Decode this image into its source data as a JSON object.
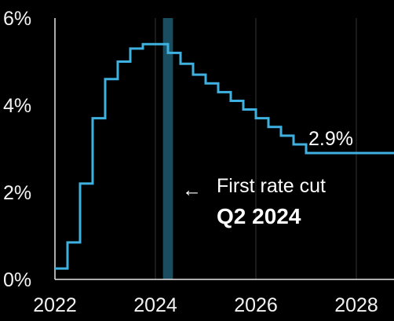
{
  "colors": {
    "background": "#000000",
    "line": "#3fb1e0",
    "highlight_band": "#1d5b70",
    "axis": "#e6e6e6",
    "gridline": "#333333",
    "text": "#f2f2f2"
  },
  "chart_data": {
    "type": "line",
    "step": true,
    "title": "",
    "xlabel": "",
    "ylabel": "",
    "xlim": [
      2022,
      2028.75
    ],
    "ylim": [
      0,
      6
    ],
    "x_ticks": [
      2022,
      2024,
      2026,
      2028
    ],
    "x_tick_labels": [
      "2022",
      "2024",
      "2026",
      "2028"
    ],
    "y_ticks": [
      0,
      2,
      4,
      6
    ],
    "y_tick_labels": [
      "0%",
      "2%",
      "4%",
      "6%"
    ],
    "grid": "vertical at year ticks",
    "legend": "none",
    "highlight_band": {
      "x_start": 2024.15,
      "x_end": 2024.35
    },
    "series": [
      {
        "x": [
          2022.0,
          2022.25,
          2022.5,
          2022.75,
          2023.0,
          2023.25,
          2023.5,
          2023.75,
          2024.0,
          2024.25,
          2024.5,
          2024.75,
          2025.0,
          2025.25,
          2025.5,
          2025.75,
          2026.0,
          2026.25,
          2026.5,
          2026.75,
          2027.0,
          2028.75
        ],
        "y": [
          0.25,
          0.85,
          2.2,
          3.7,
          4.6,
          5.0,
          5.3,
          5.4,
          5.4,
          5.2,
          4.95,
          4.7,
          4.5,
          4.3,
          4.1,
          3.9,
          3.7,
          3.5,
          3.3,
          3.1,
          2.9,
          2.9
        ]
      }
    ],
    "annotations": {
      "end_label": "2.9%",
      "arrow": "←",
      "first_cut_line1": "First rate cut",
      "first_cut_line2": "Q2 2024"
    }
  }
}
